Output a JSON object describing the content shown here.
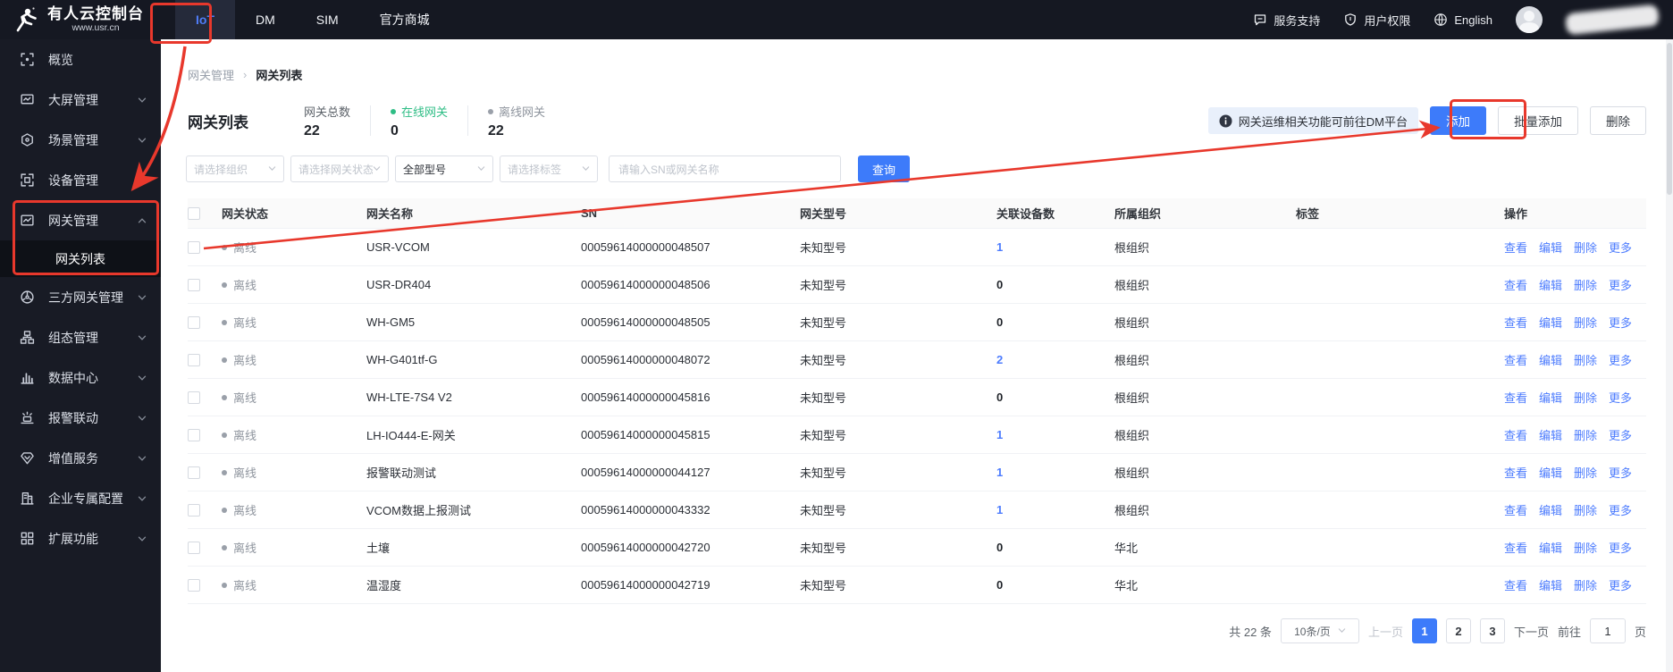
{
  "brand": {
    "title": "有人云控制台",
    "subtitle": "www.usr.cn"
  },
  "navbar": {
    "tabs": [
      {
        "label": "IoT",
        "active": true
      },
      {
        "label": "DM",
        "active": false
      },
      {
        "label": "SIM",
        "active": false
      },
      {
        "label": "官方商城",
        "active": false
      }
    ],
    "right": [
      {
        "label": "服务支持",
        "icon": "chat-icon"
      },
      {
        "label": "用户权限",
        "icon": "shield-icon"
      },
      {
        "label": "English",
        "icon": "globe-icon"
      }
    ]
  },
  "sidebar": {
    "items": [
      {
        "label": "概览",
        "icon": "overview",
        "chevron": "none",
        "type": "main"
      },
      {
        "label": "大屏管理",
        "icon": "screen",
        "chevron": "down",
        "type": "main"
      },
      {
        "label": "场景管理",
        "icon": "scene",
        "chevron": "down",
        "type": "main"
      },
      {
        "label": "设备管理",
        "icon": "device",
        "chevron": "down",
        "type": "main"
      },
      {
        "label": "网关管理",
        "icon": "gateway",
        "chevron": "up",
        "type": "main"
      },
      {
        "label": "网关列表",
        "type": "sub",
        "active": true
      },
      {
        "label": "三方网关管理",
        "icon": "third",
        "chevron": "down",
        "type": "main"
      },
      {
        "label": "组态管理",
        "icon": "topology",
        "chevron": "down",
        "type": "main"
      },
      {
        "label": "数据中心",
        "icon": "datacenter",
        "chevron": "down",
        "type": "main"
      },
      {
        "label": "报警联动",
        "icon": "alarm",
        "chevron": "down",
        "type": "main"
      },
      {
        "label": "增值服务",
        "icon": "vas",
        "chevron": "down",
        "type": "main"
      },
      {
        "label": "企业专属配置",
        "icon": "enterprise",
        "chevron": "down",
        "type": "main"
      },
      {
        "label": "扩展功能",
        "icon": "extension",
        "chevron": "down",
        "type": "main"
      }
    ]
  },
  "breadcrumb": {
    "parent": "网关管理",
    "current": "网关列表"
  },
  "page": {
    "title": "网关列表",
    "stats": [
      {
        "label": "网关总数",
        "value": "22",
        "dot": "none"
      },
      {
        "label": "在线网关",
        "value": "0",
        "dot": "green"
      },
      {
        "label": "离线网关",
        "value": "22",
        "dot": "gray"
      }
    ],
    "notice": "网关运维相关功能可前往DM平台",
    "buttons": {
      "add": "添加",
      "batch_add": "批量添加",
      "delete": "删除"
    }
  },
  "filters": {
    "selects": [
      {
        "text": "请选择组织",
        "has_value": false
      },
      {
        "text": "请选择网关状态",
        "has_value": false
      },
      {
        "text": "全部型号",
        "has_value": true
      },
      {
        "text": "请选择标签",
        "has_value": false
      }
    ],
    "search_placeholder": "请输入SN或网关名称",
    "query_label": "查询"
  },
  "table": {
    "headers": [
      "网关状态",
      "网关名称",
      "SN",
      "网关型号",
      "关联设备数",
      "所属组织",
      "标签",
      "操作"
    ],
    "action_labels": [
      "查看",
      "编辑",
      "删除",
      "更多"
    ],
    "rows": [
      {
        "status": "离线",
        "name": "USR-VCOM",
        "sn": "00059614000000048507",
        "model": "未知型号",
        "devices": "1",
        "devices_link": true,
        "org": "根组织",
        "tag": ""
      },
      {
        "status": "离线",
        "name": "USR-DR404",
        "sn": "00059614000000048506",
        "model": "未知型号",
        "devices": "0",
        "devices_link": false,
        "org": "根组织",
        "tag": ""
      },
      {
        "status": "离线",
        "name": "WH-GM5",
        "sn": "00059614000000048505",
        "model": "未知型号",
        "devices": "0",
        "devices_link": false,
        "org": "根组织",
        "tag": ""
      },
      {
        "status": "离线",
        "name": "WH-G401tf-G",
        "sn": "00059614000000048072",
        "model": "未知型号",
        "devices": "2",
        "devices_link": true,
        "org": "根组织",
        "tag": ""
      },
      {
        "status": "离线",
        "name": "WH-LTE-7S4 V2",
        "sn": "00059614000000045816",
        "model": "未知型号",
        "devices": "0",
        "devices_link": false,
        "org": "根组织",
        "tag": ""
      },
      {
        "status": "离线",
        "name": "LH-IO444-E-网关",
        "sn": "00059614000000045815",
        "model": "未知型号",
        "devices": "1",
        "devices_link": true,
        "org": "根组织",
        "tag": ""
      },
      {
        "status": "离线",
        "name": "报警联动测试",
        "sn": "00059614000000044127",
        "model": "未知型号",
        "devices": "1",
        "devices_link": true,
        "org": "根组织",
        "tag": ""
      },
      {
        "status": "离线",
        "name": "VCOM数据上报测试",
        "sn": "00059614000000043332",
        "model": "未知型号",
        "devices": "1",
        "devices_link": true,
        "org": "根组织",
        "tag": ""
      },
      {
        "status": "离线",
        "name": "土壤",
        "sn": "00059614000000042720",
        "model": "未知型号",
        "devices": "0",
        "devices_link": false,
        "org": "华北",
        "tag": ""
      },
      {
        "status": "离线",
        "name": "温湿度",
        "sn": "00059614000000042719",
        "model": "未知型号",
        "devices": "0",
        "devices_link": false,
        "org": "华北",
        "tag": ""
      }
    ]
  },
  "pagination": {
    "total_label": "共 22 条",
    "page_size": "10条/页",
    "prev_label": "上一页",
    "pages": [
      "1",
      "2",
      "3"
    ],
    "active_page": "1",
    "next_label": "下一页",
    "goto_label": "前往",
    "goto_value": "1",
    "unit_label": "页"
  },
  "annotations": {
    "highlights": [
      "iot-tab",
      "gateway-menu",
      "add-button"
    ],
    "color": "#e8382c"
  }
}
